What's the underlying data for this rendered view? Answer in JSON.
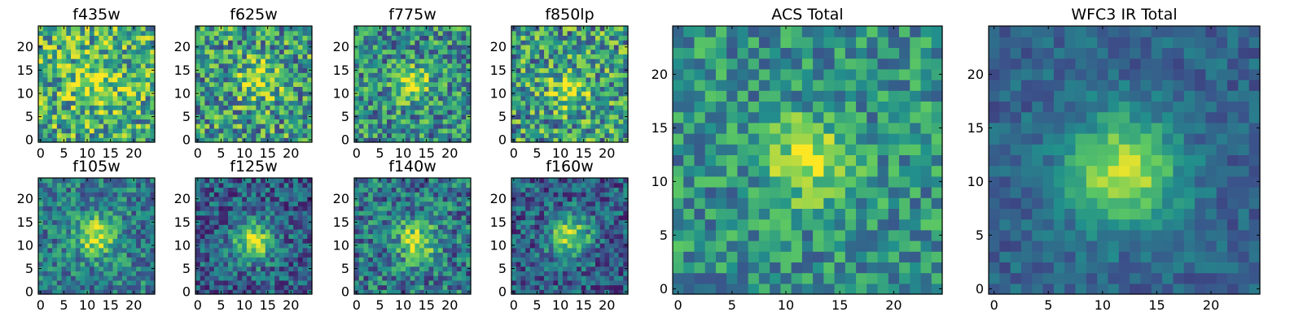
{
  "figure": {
    "colormap": "viridis",
    "colormap_stops": [
      "#440154",
      "#3b528b",
      "#21918c",
      "#5ec962",
      "#fde725"
    ]
  },
  "chart_data": [
    {
      "type": "heatmap",
      "title": "f435w",
      "grid_size": 25,
      "xticks": [
        0,
        5,
        10,
        15,
        20
      ],
      "yticks": [
        0,
        5,
        10,
        15,
        20
      ],
      "xlim": [
        0,
        24
      ],
      "ylim": [
        0,
        24
      ],
      "center": [
        12,
        13
      ],
      "peak": 0.25,
      "sigma": 4,
      "noise": 0.45,
      "seed": 11,
      "base": 0.62
    },
    {
      "type": "heatmap",
      "title": "f625w",
      "grid_size": 25,
      "xticks": [
        0,
        5,
        10,
        15,
        20
      ],
      "yticks": [
        0,
        5,
        10,
        15,
        20
      ],
      "xlim": [
        0,
        24
      ],
      "ylim": [
        0,
        24
      ],
      "center": [
        13,
        13
      ],
      "peak": 0.35,
      "sigma": 3,
      "noise": 0.45,
      "seed": 23,
      "base": 0.55
    },
    {
      "type": "heatmap",
      "title": "f775w",
      "grid_size": 25,
      "xticks": [
        0,
        5,
        10,
        15,
        20
      ],
      "yticks": [
        0,
        5,
        10,
        15,
        20
      ],
      "xlim": [
        0,
        24
      ],
      "ylim": [
        0,
        24
      ],
      "center": [
        12,
        12
      ],
      "peak": 0.45,
      "sigma": 2.5,
      "noise": 0.4,
      "seed": 37,
      "base": 0.5
    },
    {
      "type": "heatmap",
      "title": "f850lp",
      "grid_size": 25,
      "xticks": [
        0,
        5,
        10,
        15,
        20
      ],
      "yticks": [
        0,
        5,
        10,
        15,
        20
      ],
      "xlim": [
        0,
        24
      ],
      "ylim": [
        0,
        24
      ],
      "center": [
        12,
        11
      ],
      "peak": 0.35,
      "sigma": 2.8,
      "noise": 0.45,
      "seed": 41,
      "base": 0.55
    },
    {
      "type": "heatmap",
      "title": "f105w",
      "grid_size": 25,
      "xticks": [
        0,
        5,
        10,
        15,
        20
      ],
      "yticks": [
        0,
        5,
        10,
        15,
        20
      ],
      "xlim": [
        0,
        24
      ],
      "ylim": [
        0,
        24
      ],
      "center": [
        12,
        12
      ],
      "peak": 0.5,
      "sigma": 3,
      "noise": 0.3,
      "seed": 53,
      "base": 0.42
    },
    {
      "type": "heatmap",
      "title": "f125w",
      "grid_size": 25,
      "xticks": [
        0,
        5,
        10,
        15,
        20
      ],
      "yticks": [
        0,
        5,
        10,
        15,
        20
      ],
      "xlim": [
        0,
        24
      ],
      "ylim": [
        0,
        24
      ],
      "center": [
        12,
        11
      ],
      "peak": 0.6,
      "sigma": 3,
      "noise": 0.3,
      "seed": 67,
      "base": 0.3
    },
    {
      "type": "heatmap",
      "title": "f140w",
      "grid_size": 25,
      "xticks": [
        0,
        5,
        10,
        15,
        20
      ],
      "yticks": [
        0,
        5,
        10,
        15,
        20
      ],
      "xlim": [
        0,
        24
      ],
      "ylim": [
        0,
        24
      ],
      "center": [
        13,
        11
      ],
      "peak": 0.5,
      "sigma": 3,
      "noise": 0.35,
      "seed": 71,
      "base": 0.4
    },
    {
      "type": "heatmap",
      "title": "f160w",
      "grid_size": 25,
      "xticks": [
        0,
        5,
        10,
        15,
        20
      ],
      "yticks": [
        0,
        5,
        10,
        15,
        20
      ],
      "xlim": [
        0,
        24
      ],
      "ylim": [
        0,
        24
      ],
      "center": [
        12,
        12
      ],
      "peak": 0.6,
      "sigma": 3,
      "noise": 0.3,
      "seed": 83,
      "base": 0.3
    },
    {
      "type": "heatmap",
      "title": "ACS Total",
      "grid_size": 25,
      "xticks": [
        0,
        5,
        10,
        15,
        20
      ],
      "yticks": [
        0,
        5,
        10,
        15,
        20
      ],
      "xlim": [
        0,
        24
      ],
      "ylim": [
        0,
        24
      ],
      "center": [
        12,
        12
      ],
      "peak": 0.45,
      "sigma": 2.6,
      "noise": 0.3,
      "seed": 97,
      "base": 0.5
    },
    {
      "type": "heatmap",
      "title": "WFC3 IR Total",
      "grid_size": 25,
      "xticks": [
        0,
        5,
        10,
        15,
        20
      ],
      "yticks": [
        0,
        5,
        10,
        15,
        20
      ],
      "xlim": [
        0,
        24
      ],
      "ylim": [
        0,
        24
      ],
      "center": [
        12,
        11
      ],
      "peak": 0.6,
      "sigma": 3.5,
      "noise": 0.15,
      "seed": 101,
      "base": 0.32
    }
  ]
}
